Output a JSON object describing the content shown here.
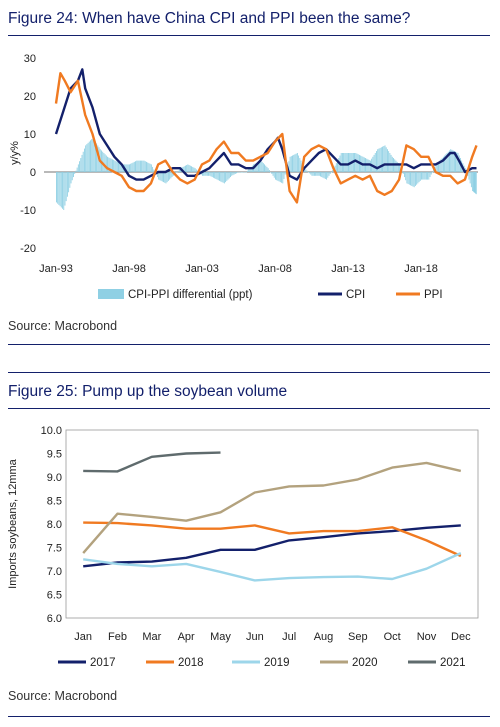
{
  "figure24": {
    "title": "Figure 24: When have China CPI and PPI been the same?",
    "source": "Source: Macrobond",
    "chart_data": {
      "type": "line",
      "ylabel": "y/y%",
      "ylim": [
        -20,
        30
      ],
      "yticks": [
        -20,
        -10,
        0,
        10,
        20,
        30
      ],
      "xlim": [
        1993.0,
        2021.9
      ],
      "xtick_labels": [
        "Jan-93",
        "Jan-98",
        "Jan-03",
        "Jan-08",
        "Jan-13",
        "Jan-18"
      ],
      "xtick_values": [
        1993,
        1998,
        2003,
        2008,
        2013,
        2018
      ],
      "legend_position": "bottom",
      "colors": {
        "differential": "#8fd0e4",
        "CPI": "#13206b",
        "PPI": "#f07a21"
      },
      "series": [
        {
          "name": "CPI-PPI differential (ppt)",
          "style": "bar",
          "x": [
            1993.0,
            1993.5,
            1994.0,
            1994.5,
            1995.0,
            1995.5,
            1996.0,
            1996.5,
            1997.0,
            1997.5,
            1998.0,
            1998.5,
            1999.0,
            1999.5,
            2000.0,
            2000.5,
            2001.0,
            2001.5,
            2002.0,
            2002.5,
            2003.0,
            2003.5,
            2004.0,
            2004.5,
            2005.0,
            2005.5,
            2006.0,
            2006.5,
            2007.0,
            2007.5,
            2008.0,
            2008.5,
            2009.0,
            2009.5,
            2010.0,
            2010.5,
            2011.0,
            2011.5,
            2012.0,
            2012.5,
            2013.0,
            2013.5,
            2014.0,
            2014.5,
            2015.0,
            2015.5,
            2016.0,
            2016.5,
            2017.0,
            2017.5,
            2018.0,
            2018.5,
            2019.0,
            2019.5,
            2020.0,
            2020.5,
            2021.0,
            2021.5,
            2021.8
          ],
          "values": [
            -8,
            -10,
            -3,
            2,
            7,
            9,
            6,
            4,
            3,
            2,
            2,
            3,
            3,
            2,
            -2,
            -3,
            -1,
            1,
            2,
            1,
            -1,
            -1,
            -2,
            -3,
            -1,
            0,
            0,
            2,
            3,
            1,
            -2,
            -3,
            4,
            5,
            1,
            -1,
            -1,
            -2,
            1,
            5,
            5,
            5,
            4,
            3,
            6,
            7,
            4,
            2,
            -3,
            -4,
            -2,
            -2,
            2,
            4,
            6,
            5,
            1,
            -5,
            -6
          ]
        },
        {
          "name": "CPI",
          "style": "line",
          "x": [
            1993.0,
            1993.5,
            1994.0,
            1994.5,
            1994.8,
            1995.0,
            1995.5,
            1996.0,
            1996.5,
            1997.0,
            1997.5,
            1998.0,
            1998.5,
            1999.0,
            1999.5,
            2000.0,
            2000.5,
            2001.0,
            2001.5,
            2002.0,
            2002.5,
            2003.0,
            2003.5,
            2004.0,
            2004.5,
            2005.0,
            2005.5,
            2006.0,
            2006.5,
            2007.0,
            2007.5,
            2008.0,
            2008.2,
            2008.5,
            2009.0,
            2009.5,
            2010.0,
            2010.5,
            2011.0,
            2011.5,
            2012.0,
            2012.5,
            2013.0,
            2013.5,
            2014.0,
            2014.5,
            2015.0,
            2015.5,
            2016.0,
            2016.5,
            2017.0,
            2017.5,
            2018.0,
            2018.5,
            2019.0,
            2019.5,
            2020.0,
            2020.3,
            2020.6,
            2021.0,
            2021.5,
            2021.8
          ],
          "values": [
            10,
            16,
            22,
            24,
            27,
            22,
            17,
            10,
            7,
            4,
            2,
            -1,
            -2,
            -2,
            -1,
            0,
            0,
            1,
            1,
            -1,
            -1,
            0,
            1,
            3,
            5,
            2,
            2,
            1,
            1,
            3,
            6,
            8,
            9,
            6,
            -1,
            -2,
            1,
            3,
            5,
            6,
            4,
            2,
            2,
            3,
            2,
            2,
            1,
            2,
            2,
            2,
            2,
            1,
            2,
            2,
            2,
            3,
            5,
            5,
            3,
            0,
            1,
            1
          ]
        },
        {
          "name": "PPI",
          "style": "line",
          "x": [
            1993.0,
            1993.3,
            1993.6,
            1994.0,
            1994.5,
            1995.0,
            1995.5,
            1996.0,
            1996.5,
            1997.0,
            1997.5,
            1998.0,
            1998.5,
            1999.0,
            1999.5,
            2000.0,
            2000.5,
            2001.0,
            2001.5,
            2002.0,
            2002.5,
            2003.0,
            2003.5,
            2004.0,
            2004.5,
            2005.0,
            2005.5,
            2006.0,
            2006.5,
            2007.0,
            2007.5,
            2008.0,
            2008.5,
            2009.0,
            2009.5,
            2010.0,
            2010.5,
            2011.0,
            2011.5,
            2012.0,
            2012.5,
            2013.0,
            2013.5,
            2014.0,
            2014.5,
            2015.0,
            2015.5,
            2016.0,
            2016.5,
            2017.0,
            2017.5,
            2018.0,
            2018.5,
            2019.0,
            2019.5,
            2020.0,
            2020.5,
            2021.0,
            2021.5,
            2021.8
          ],
          "values": [
            18,
            26,
            24,
            21,
            24,
            15,
            10,
            3,
            1,
            0,
            -1,
            -4,
            -5,
            -5,
            -3,
            2,
            3,
            0,
            -2,
            -3,
            -2,
            2,
            3,
            6,
            8,
            5,
            5,
            3,
            3,
            4,
            5,
            8,
            10,
            -5,
            -8,
            4,
            6,
            7,
            6,
            1,
            -3,
            -2,
            -1,
            -2,
            -1,
            -5,
            -6,
            -5,
            -2,
            7,
            6,
            4,
            4,
            0,
            -1,
            -1,
            -3,
            -2,
            4,
            7
          ]
        }
      ]
    }
  },
  "figure25": {
    "title": "Figure 25: Pump up the soybean volume",
    "source": "Source: Macrobond",
    "chart_data": {
      "type": "line",
      "ylabel": "Imports soybeans, 12mma",
      "ylim": [
        6.0,
        10.0
      ],
      "yticks": [
        "6.0",
        "6.5",
        "7.0",
        "7.5",
        "8.0",
        "8.5",
        "9.0",
        "9.5",
        "10.0"
      ],
      "categories": [
        "Jan",
        "Feb",
        "Mar",
        "Apr",
        "May",
        "Jun",
        "Jul",
        "Aug",
        "Sep",
        "Oct",
        "Nov",
        "Dec"
      ],
      "legend_position": "bottom",
      "series": [
        {
          "name": "2017",
          "color": "#13206b",
          "values": [
            7.1,
            7.18,
            7.2,
            7.28,
            7.45,
            7.45,
            7.65,
            7.72,
            7.8,
            7.85,
            7.92,
            7.97
          ]
        },
        {
          "name": "2018",
          "color": "#f07a21",
          "values": [
            8.03,
            8.02,
            7.97,
            7.9,
            7.9,
            7.97,
            7.8,
            7.85,
            7.85,
            7.93,
            7.65,
            7.32
          ]
        },
        {
          "name": "2019",
          "color": "#9dd6ea",
          "values": [
            7.25,
            7.15,
            7.1,
            7.15,
            6.98,
            6.8,
            6.85,
            6.87,
            6.88,
            6.83,
            7.05,
            7.38
          ]
        },
        {
          "name": "2020",
          "color": "#b3a27e",
          "values": [
            7.38,
            8.22,
            8.15,
            8.07,
            8.25,
            8.67,
            8.8,
            8.82,
            8.95,
            9.2,
            9.3,
            9.13
          ]
        },
        {
          "name": "2021",
          "color": "#5f6b6d",
          "values": [
            9.13,
            9.12,
            9.43,
            9.5,
            9.52,
            null,
            null,
            null,
            null,
            null,
            null,
            null
          ]
        }
      ]
    }
  }
}
